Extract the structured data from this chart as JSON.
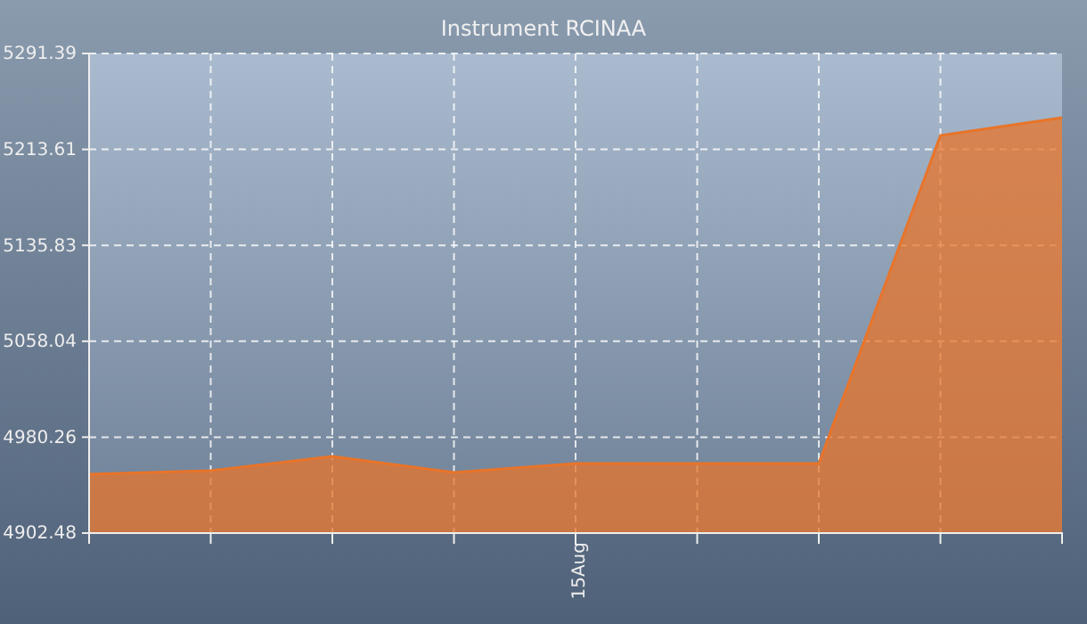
{
  "chart_data": {
    "type": "area",
    "title": "Instrument RCINAA",
    "categories": [
      null,
      null,
      null,
      null,
      "15Aug",
      null,
      null,
      null,
      null
    ],
    "series": [
      {
        "color": "#e8742a",
        "values": [
          4950.2,
          4953,
          4964.6,
          4951.6,
          4958.9,
          4958.9,
          4958.9,
          5224.9,
          5239.4
        ]
      }
    ],
    "ylim": [
      4902.48,
      5291.39
    ],
    "yticks": [
      4902.48,
      4980.26,
      5058.04,
      5135.83,
      5213.61,
      5291.39
    ],
    "grid": true,
    "line_style": "solid",
    "marker": "none"
  }
}
